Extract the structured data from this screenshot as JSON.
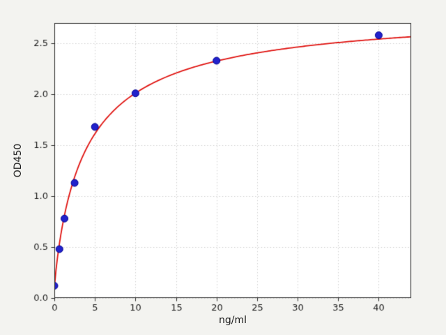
{
  "chart_data": {
    "type": "scatter",
    "title": "",
    "xlabel": "ng/ml",
    "ylabel": "OD450",
    "xlim": [
      0,
      44
    ],
    "ylim": [
      0,
      2.7
    ],
    "xticks": [
      0,
      5,
      10,
      15,
      20,
      25,
      30,
      35,
      40
    ],
    "yticks": [
      0,
      0.5,
      1,
      1.5,
      2,
      2.5
    ],
    "grid": true,
    "legend": false,
    "points": {
      "x": [
        0,
        0.625,
        1.25,
        2.5,
        5,
        10,
        20,
        40
      ],
      "y": [
        0.12,
        0.48,
        0.78,
        1.13,
        1.68,
        2.01,
        2.33,
        2.58
      ]
    },
    "fit_curve": {
      "model": "4PL",
      "params": {
        "a": 0.1,
        "b": 0.9,
        "c": 4.0,
        "d": 2.85
      },
      "x_range": [
        0,
        44
      ]
    },
    "colors": {
      "points": "#2222cc",
      "point_edge": "#000090",
      "curve": "#e01310",
      "grid": "#cccccc",
      "figure_bg": "#f3f3f0",
      "plot_bg": "#ffffff",
      "spine": "#2a2a2a",
      "text": "#1a1a1a"
    }
  }
}
